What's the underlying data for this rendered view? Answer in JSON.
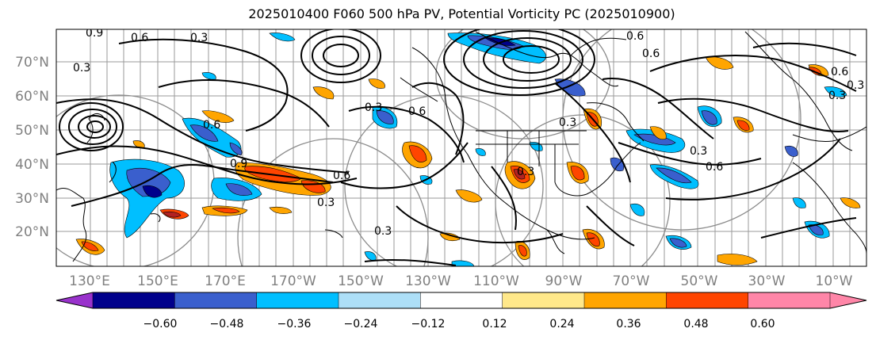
{
  "title": "2025010400 F060 500 hPa PV, Potential Vorticity PC (2025010900)",
  "lat_labels": [
    "70°N",
    "60°N",
    "50°N",
    "40°N",
    "30°N",
    "20°N"
  ],
  "lon_labels": [
    "130°E",
    "150°E",
    "170°E",
    "170°W",
    "150°W",
    "130°W",
    "110°W",
    "90°W",
    "70°W",
    "50°W",
    "30°W",
    "10°W"
  ],
  "colorbar": {
    "ticks": [
      "−0.60",
      "−0.48",
      "−0.36",
      "−0.24",
      "−0.12",
      "0.12",
      "0.24",
      "0.36",
      "0.48",
      "0.60"
    ],
    "colors": [
      "#9932CC",
      "#00008B",
      "#3A5FCD",
      "#00BFFF",
      "#ADDFF7",
      "#FFFFFF",
      "#FFE88A",
      "#FFA500",
      "#FF4500",
      "#B22222",
      "#FF86A8"
    ]
  },
  "contour_labels": [
    "0.9",
    "0.6",
    "0.3",
    "0.3",
    "0.6",
    "0.9",
    "0.6",
    "0.3",
    "0.6",
    "0.3",
    "0.3",
    "0.6",
    "0.3",
    "0.6",
    "0.6",
    "0.3",
    "0.3",
    "0.3",
    "0.6",
    "0.3"
  ]
}
